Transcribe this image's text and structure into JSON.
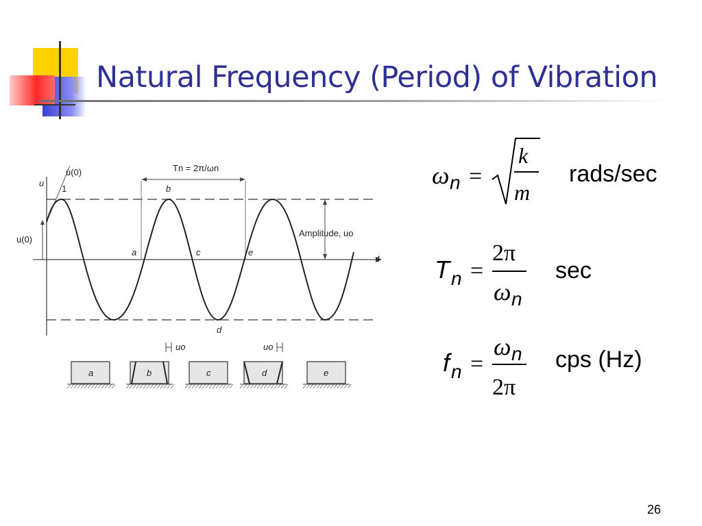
{
  "slide": {
    "title": "Natural Frequency (Period) of Vibration",
    "page_number": "26",
    "accent_color": "#2e3192"
  },
  "figure": {
    "labels": {
      "u_axis": "u",
      "t_axis": "t",
      "u0_initial": "u(0)",
      "udot0_initial": "u̇(0)",
      "slope_one": "1",
      "period": "Tn = 2π/ωn",
      "amplitude": "Amplitude, uo",
      "point_a": "a",
      "point_b": "b",
      "point_c": "c",
      "point_d": "d",
      "point_e": "e",
      "disp_left": "uo",
      "disp_right": "uo"
    },
    "frames": [
      "a",
      "b",
      "c",
      "d",
      "e"
    ]
  },
  "equations": {
    "omega": {
      "lhs": "ωn =",
      "numerator": "k",
      "denominator": "m",
      "unit": "rads/sec"
    },
    "period": {
      "lhs": "Tn =",
      "numerator": "2π",
      "denominator": "ωn",
      "unit": "sec"
    },
    "frequency": {
      "lhs": "fn =",
      "numerator": "ωn",
      "denominator": "2π",
      "unit": "cps (Hz)"
    }
  }
}
